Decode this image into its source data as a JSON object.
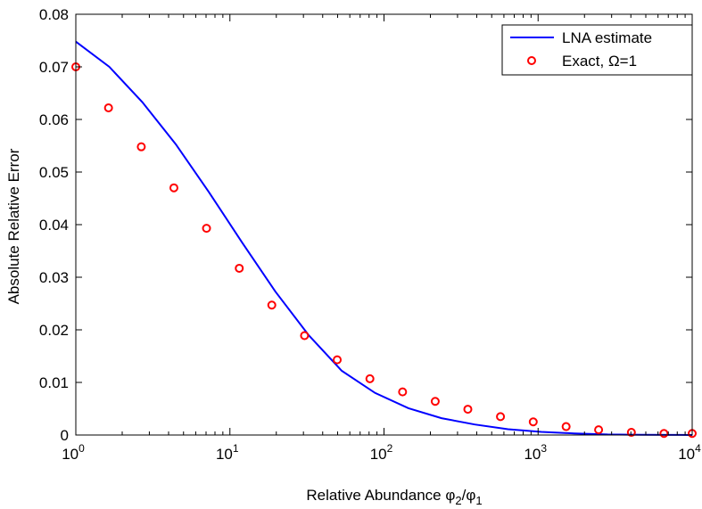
{
  "chart_data": {
    "type": "line",
    "title": "",
    "xlabel_main": "Relative Abundance ",
    "xlabel_phi": "φ",
    "xlabel_sub1": "2",
    "xlabel_slash": "/",
    "xlabel_sub2": "1",
    "ylabel": "Absolute Relative Error",
    "xscale": "log",
    "xlim": [
      1,
      10000
    ],
    "ylim": [
      0,
      0.08
    ],
    "x_ticks": [
      {
        "base": "10",
        "exp": "0",
        "value": 1
      },
      {
        "base": "10",
        "exp": "1",
        "value": 10
      },
      {
        "base": "10",
        "exp": "2",
        "value": 100
      },
      {
        "base": "10",
        "exp": "3",
        "value": 1000
      },
      {
        "base": "10",
        "exp": "4",
        "value": 10000
      }
    ],
    "y_ticks": [
      {
        "label": "0",
        "value": 0
      },
      {
        "label": "0.01",
        "value": 0.01
      },
      {
        "label": "0.02",
        "value": 0.02
      },
      {
        "label": "0.03",
        "value": 0.03
      },
      {
        "label": "0.04",
        "value": 0.04
      },
      {
        "label": "0.05",
        "value": 0.05
      },
      {
        "label": "0.06",
        "value": 0.06
      },
      {
        "label": "0.07",
        "value": 0.07
      },
      {
        "label": "0.08",
        "value": 0.08
      }
    ],
    "grid": false,
    "legend_position": "top-right",
    "series": [
      {
        "name": "LNA estimate",
        "style": "line",
        "color": "#0000ff",
        "x": [
          1,
          1.65,
          2.7,
          4.45,
          7.3,
          12,
          19.7,
          32.4,
          53.2,
          87.5,
          144,
          236,
          388,
          638,
          1050,
          1720,
          2830,
          4650,
          7650,
          10000
        ],
        "y": [
          0.0748,
          0.07,
          0.0633,
          0.0553,
          0.0462,
          0.0366,
          0.0273,
          0.019,
          0.0122,
          0.008,
          0.0051,
          0.0032,
          0.002,
          0.0011,
          0.0006,
          0.0003,
          0.0001,
          5e-05,
          2e-05,
          1e-05
        ]
      },
      {
        "name": "Exact, Ω=1",
        "style": "marker",
        "color": "#ff0000",
        "x": [
          1,
          1.63,
          2.66,
          4.33,
          7.05,
          11.5,
          18.7,
          30.5,
          49.7,
          81,
          132,
          215,
          350,
          570,
          930,
          1520,
          2470,
          4030,
          6560,
          10000
        ],
        "y": [
          0.07,
          0.0622,
          0.0548,
          0.047,
          0.0393,
          0.0317,
          0.0247,
          0.0189,
          0.0143,
          0.0107,
          0.0082,
          0.0064,
          0.0049,
          0.0035,
          0.0025,
          0.0016,
          0.001,
          0.0005,
          0.0003,
          0.0003
        ]
      }
    ]
  }
}
